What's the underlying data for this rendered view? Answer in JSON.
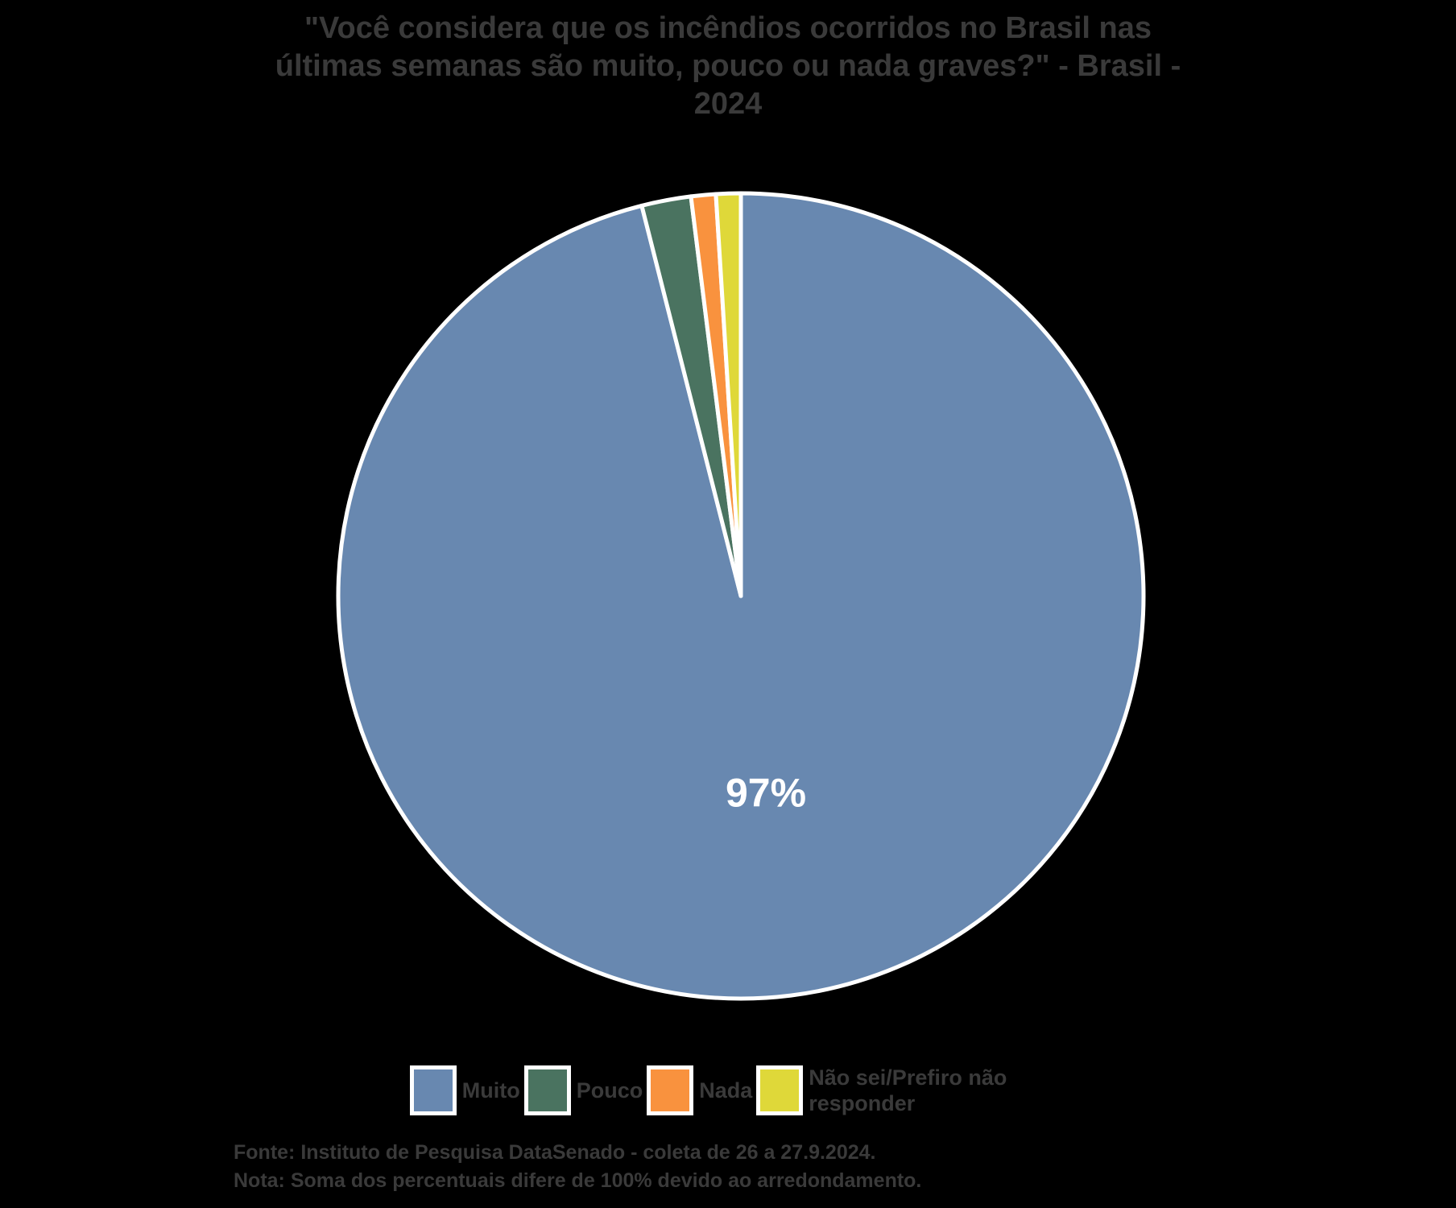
{
  "page": {
    "background_color": "#000000",
    "text_color": "#3A3A3A"
  },
  "header": {
    "title_lines": [
      "\"Você considera que os incêndios ocorridos no Brasil nas",
      "últimas semanas são muito, pouco ou nada graves?\" - Brasil -",
      "2024"
    ]
  },
  "chart_data": {
    "type": "pie",
    "title": "\"Você considera que os incêndios ocorridos no Brasil nas últimas semanas são muito, pouco ou nada graves?\" - Brasil - 2024",
    "labels": [
      "Muito",
      "Pouco",
      "Nada",
      "Não sei/Prefiro não responder"
    ],
    "values": [
      97,
      2,
      1,
      1
    ],
    "unit": "%",
    "colors": [
      "#6888B0",
      "#4A7360",
      "#F9923E",
      "#DFD839"
    ],
    "data_labels": [
      "97%",
      "",
      "",
      ""
    ],
    "data_label_color": "#FFFFFF",
    "slice_border_color": "#FFFFFF",
    "start_angle_deg": 0,
    "direction": "clockwise",
    "legend_position": "bottom"
  },
  "footer": {
    "source": "Fonte: Instituto de Pesquisa DataSenado - coleta de 26 a 27.9.2024.",
    "note": "Nota: Soma dos percentuais difere de 100% devido ao arredondamento."
  }
}
